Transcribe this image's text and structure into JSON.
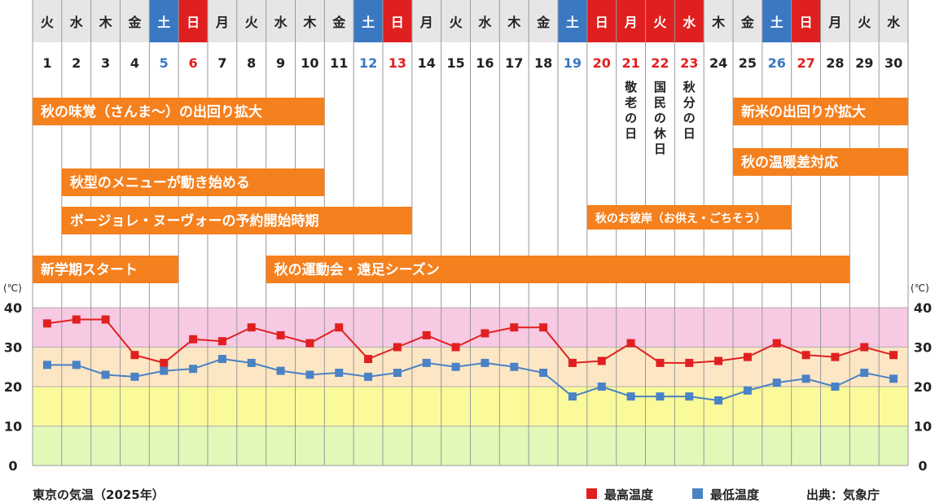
{
  "days_of_week": [
    "火",
    "水",
    "木",
    "金",
    "土",
    "日",
    "月",
    "火",
    "水",
    "木",
    "金",
    "土",
    "日",
    "月",
    "火",
    "水",
    "木",
    "金",
    "土",
    "日",
    "月",
    "火",
    "水",
    "木",
    "金",
    "土",
    "日",
    "月",
    "火",
    "水"
  ],
  "dates": [
    "1",
    "2",
    "3",
    "4",
    "5",
    "6",
    "7",
    "8",
    "9",
    "10",
    "11",
    "12",
    "13",
    "14",
    "15",
    "16",
    "17",
    "18",
    "19",
    "20",
    "21",
    "22",
    "23",
    "24",
    "25",
    "26",
    "27",
    "28",
    "29",
    "30"
  ],
  "day_types": [
    "w",
    "w",
    "w",
    "w",
    "sat",
    "sun",
    "w",
    "w",
    "w",
    "w",
    "w",
    "sat",
    "sun",
    "w",
    "w",
    "w",
    "w",
    "w",
    "sat",
    "sun",
    "hol",
    "hol",
    "hol",
    "w",
    "w",
    "sat",
    "sun",
    "w",
    "w",
    "w"
  ],
  "holidays": [
    {
      "day": 21,
      "label": "敬老の日"
    },
    {
      "day": 22,
      "label": "国民の休日"
    },
    {
      "day": 23,
      "label": "秋分の日"
    }
  ],
  "events": [
    {
      "label": "秋の味覚（さんま〜）の出回り拡大",
      "start": 1,
      "end": 10
    },
    {
      "label": "秋型のメニューが動き始める",
      "start": 2,
      "end": 10
    },
    {
      "label": "ボージョレ・ヌーヴォーの予約開始時期",
      "start": 2,
      "end": 13
    },
    {
      "label": "新学期スタート",
      "start": 1,
      "end": 5
    },
    {
      "label": "秋の運動会・遠足シーズン",
      "start": 9,
      "end": 28
    },
    {
      "label": "秋のお彼岸（お供え・ごちそう）",
      "start": 20,
      "end": 26
    },
    {
      "label": "新米の出回りが拡大",
      "start": 25,
      "end": 30
    },
    {
      "label": "秋の温暖差対応",
      "start": 25,
      "end": 30
    }
  ],
  "colors": {
    "header_bg": "#e6e6e6",
    "saturday": "#3a78c2",
    "sunday": "#e02020",
    "event": "#f5801e",
    "max_series": "#e02020",
    "min_series": "#4a82c4",
    "band_40": "#f7c9e3",
    "band_30": "#fde6c4",
    "band_20": "#fafa9a",
    "band_10": "#e0f8b8"
  },
  "chart_data": {
    "type": "line",
    "title": "東京の気温（2025年）",
    "unit": "(℃)",
    "x": [
      1,
      2,
      3,
      4,
      5,
      6,
      7,
      8,
      9,
      10,
      11,
      12,
      13,
      14,
      15,
      16,
      17,
      18,
      19,
      20,
      21,
      22,
      23,
      24,
      25,
      26,
      27,
      28,
      29,
      30
    ],
    "ylim": [
      0,
      40
    ],
    "yticks": [
      "40",
      "30",
      "20",
      "10",
      "0"
    ],
    "series": [
      {
        "name": "最高温度",
        "values": [
          36,
          37,
          37,
          28,
          26,
          32,
          31.5,
          35,
          33,
          31,
          35,
          27,
          30,
          33,
          30,
          33.5,
          35,
          35,
          26,
          26.5,
          31,
          26,
          26,
          26.5,
          27.5,
          31,
          28,
          27.5,
          30,
          28
        ]
      },
      {
        "name": "最低温度",
        "values": [
          25.5,
          25.5,
          23,
          22.5,
          24,
          24.5,
          27,
          26,
          24,
          23,
          23.5,
          22.5,
          23.5,
          26,
          25,
          26,
          25,
          23.5,
          17.5,
          20,
          17.5,
          17.5,
          17.5,
          16.5,
          19,
          21,
          22,
          20,
          23.5,
          22
        ]
      }
    ],
    "bands": [
      [
        30,
        40
      ],
      [
        20,
        30
      ],
      [
        10,
        20
      ],
      [
        0,
        10
      ]
    ]
  },
  "legend": {
    "max_label": "最高温度",
    "min_label": "最低温度"
  },
  "source": "出典：気象庁"
}
